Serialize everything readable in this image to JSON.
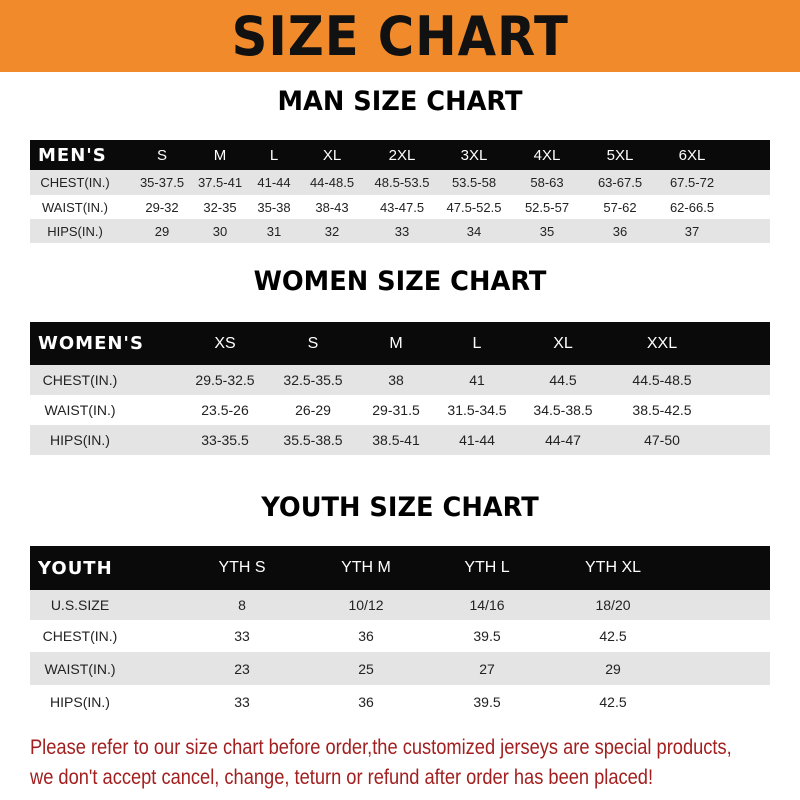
{
  "title": "SIZE CHART",
  "banner_color": "#f08a2a",
  "men": {
    "heading": "MAN SIZE CHART",
    "header": [
      "MEN'S",
      "S",
      "M",
      "L",
      "XL",
      "2XL",
      "3XL",
      "4XL",
      "5XL",
      "6XL"
    ],
    "rows": [
      [
        "CHEST(IN.)",
        "35-37.5",
        "37.5-41",
        "41-44",
        "44-48.5",
        "48.5-53.5",
        "53.5-58",
        "58-63",
        "63-67.5",
        "67.5-72"
      ],
      [
        "WAIST(IN.)",
        "29-32",
        "32-35",
        "35-38",
        "38-43",
        "43-47.5",
        "47.5-52.5",
        "52.5-57",
        "57-62",
        "62-66.5"
      ],
      [
        "HIPS(IN.)",
        "29",
        "30",
        "31",
        "32",
        "33",
        "34",
        "35",
        "36",
        "37"
      ]
    ]
  },
  "women": {
    "heading": "WOMEN SIZE CHART",
    "header": [
      "WOMEN'S",
      "XS",
      "S",
      "M",
      "L",
      "XL",
      "XXL"
    ],
    "rows": [
      [
        "CHEST(IN.)",
        "29.5-32.5",
        "32.5-35.5",
        "38",
        "41",
        "44.5",
        "44.5-48.5"
      ],
      [
        "WAIST(IN.)",
        "23.5-26",
        "26-29",
        "29-31.5",
        "31.5-34.5",
        "34.5-38.5",
        "38.5-42.5"
      ],
      [
        "HIPS(IN.)",
        "33-35.5",
        "35.5-38.5",
        "38.5-41",
        "41-44",
        "44-47",
        "47-50"
      ]
    ]
  },
  "youth": {
    "heading": "YOUTH SIZE CHART",
    "header": [
      "YOUTH",
      "YTH S",
      "YTH M",
      "YTH L",
      "YTH XL"
    ],
    "rows": [
      [
        "U.S.SIZE",
        "8",
        "10/12",
        "14/16",
        "18/20"
      ],
      [
        "CHEST(IN.)",
        "33",
        "36",
        "39.5",
        "42.5"
      ],
      [
        "WAIST(IN.)",
        "23",
        "25",
        "27",
        "29"
      ],
      [
        "HIPS(IN.)",
        "33",
        "36",
        "39.5",
        "42.5"
      ]
    ]
  },
  "note": {
    "line1": "Please refer to our size chart before order,the customized jerseys are special products,",
    "line2": "we don't accept cancel, change, teturn or refund after order has been placed!",
    "color": "#a31f1f"
  }
}
